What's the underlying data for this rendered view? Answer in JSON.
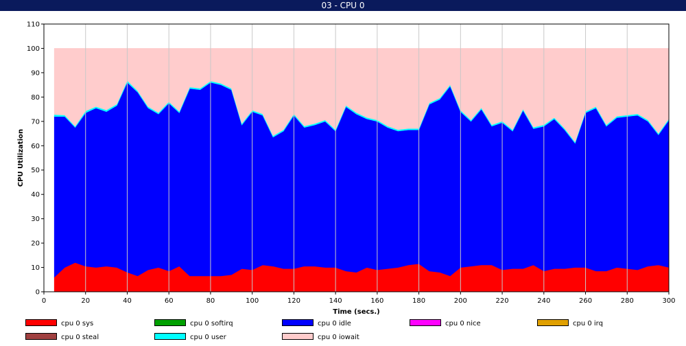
{
  "window": {
    "title": "03 - CPU 0"
  },
  "chart_data": {
    "type": "area",
    "stacked": true,
    "xlabel": "Time (secs.)",
    "ylabel": "CPU Utilization",
    "xlim": [
      0,
      300
    ],
    "ylim": [
      0,
      110
    ],
    "x_ticks": [
      0,
      20,
      40,
      60,
      80,
      100,
      120,
      140,
      160,
      180,
      200,
      220,
      240,
      260,
      280,
      300
    ],
    "y_ticks": [
      0,
      10,
      20,
      30,
      40,
      50,
      60,
      70,
      80,
      90,
      100,
      110
    ],
    "grid": "vertical",
    "legend_position": "bottom",
    "x": [
      5,
      10,
      15,
      20,
      25,
      30,
      35,
      40,
      45,
      50,
      55,
      60,
      65,
      70,
      75,
      80,
      85,
      90,
      95,
      100,
      105,
      110,
      115,
      120,
      125,
      130,
      135,
      140,
      145,
      150,
      155,
      160,
      165,
      170,
      175,
      180,
      185,
      190,
      195,
      200,
      205,
      210,
      215,
      220,
      225,
      230,
      235,
      240,
      245,
      250,
      255,
      260,
      265,
      270,
      275,
      280,
      285,
      290,
      295,
      300
    ],
    "series": [
      {
        "name": "cpu 0 sys",
        "color": "#ff0000",
        "values": [
          6,
          10,
          12,
          10.5,
          10,
          10.5,
          10,
          8,
          6.5,
          9,
          10,
          8.5,
          10.5,
          6.5,
          6.5,
          6.5,
          6.5,
          7,
          9.5,
          9,
          11,
          10.5,
          9.5,
          9.5,
          10.5,
          10.5,
          10,
          10,
          8.5,
          8,
          10,
          9,
          9.5,
          10,
          11,
          11.5,
          8.5,
          8,
          6.5,
          10,
          10.5,
          11,
          11,
          9,
          9.5,
          9.5,
          11,
          8.5,
          9.5,
          9.5,
          10,
          10,
          8.5,
          8.5,
          10,
          9.5,
          9,
          10.5,
          11,
          10
        ]
      },
      {
        "name": "cpu 0 softirq",
        "color": "#00a000",
        "values": [
          0,
          0,
          0,
          0,
          0,
          0,
          0,
          0,
          0,
          0,
          0,
          0,
          0,
          0,
          0,
          0,
          0,
          0,
          0,
          0,
          0,
          0,
          0,
          0,
          0,
          0,
          0,
          0,
          0,
          0,
          0,
          0,
          0,
          0,
          0,
          0,
          0,
          0,
          0,
          0,
          0,
          0,
          0,
          0,
          0,
          0,
          0,
          0,
          0,
          0,
          0,
          0,
          0,
          0,
          0,
          0,
          0,
          0,
          0,
          0
        ]
      },
      {
        "name": "cpu 0 idle",
        "color": "#0000ff",
        "values": [
          66,
          62,
          55.5,
          63,
          65.5,
          63.5,
          66.5,
          78,
          75.5,
          66.5,
          63,
          69,
          63,
          77,
          76.5,
          79.5,
          78.5,
          76,
          59,
          65,
          61.5,
          53,
          56.5,
          63,
          57,
          58,
          60,
          56,
          67.5,
          65,
          61,
          61,
          58,
          56,
          55.5,
          55,
          68.5,
          71,
          78,
          64,
          59.5,
          64,
          57,
          60.5,
          56.5,
          65,
          56,
          59.5,
          61.5,
          57,
          51,
          63.5,
          67,
          59.5,
          61.5,
          62.5,
          63.5,
          59.5,
          53.5,
          60.5
        ]
      },
      {
        "name": "cpu 0 nice",
        "color": "#ff00ff",
        "values": [
          0,
          0,
          0,
          0,
          0,
          0,
          0,
          0,
          0,
          0,
          0,
          0,
          0,
          0,
          0,
          0,
          0,
          0,
          0,
          0,
          0,
          0,
          0,
          0,
          0,
          0,
          0,
          0,
          0,
          0,
          0,
          0,
          0,
          0,
          0,
          0,
          0,
          0,
          0,
          0,
          0,
          0,
          0,
          0,
          0,
          0,
          0,
          0,
          0,
          0,
          0,
          0,
          0,
          0,
          0,
          0,
          0,
          0,
          0,
          0
        ]
      },
      {
        "name": "cpu 0 irq",
        "color": "#e0a000",
        "values": [
          0,
          0,
          0,
          0,
          0,
          0,
          0,
          0,
          0,
          0,
          0,
          0,
          0,
          0,
          0,
          0,
          0,
          0,
          0,
          0,
          0,
          0,
          0,
          0,
          0,
          0,
          0,
          0,
          0,
          0,
          0,
          0,
          0,
          0,
          0,
          0,
          0,
          0,
          0,
          0,
          0,
          0,
          0,
          0,
          0,
          0,
          0,
          0,
          0,
          0,
          0,
          0,
          0,
          0,
          0,
          0,
          0,
          0,
          0,
          0
        ]
      },
      {
        "name": "cpu 0 steal",
        "color": "#a04040",
        "values": [
          0,
          0,
          0,
          0,
          0,
          0,
          0,
          0,
          0,
          0,
          0,
          0,
          0,
          0,
          0,
          0,
          0,
          0,
          0,
          0,
          0,
          0,
          0,
          0,
          0,
          0,
          0,
          0,
          0,
          0,
          0,
          0,
          0,
          0,
          0,
          0,
          0,
          0,
          0,
          0,
          0,
          0,
          0,
          0,
          0,
          0,
          0,
          0,
          0,
          0,
          0,
          0,
          0,
          0,
          0,
          0,
          0,
          0,
          0,
          0
        ]
      },
      {
        "name": "cpu 0 user",
        "color": "#00ffff",
        "values": [
          0.8,
          0.6,
          0.5,
          0.8,
          0.6,
          0.7,
          0.6,
          0.8,
          0.6,
          0.6,
          0.6,
          0.6,
          0.6,
          0.6,
          0.6,
          0.6,
          0.6,
          0.6,
          0.6,
          0.6,
          0.6,
          0.6,
          0.6,
          0.6,
          0.6,
          0.6,
          0.6,
          0.6,
          0.6,
          0.6,
          0.6,
          0.6,
          0.6,
          0.6,
          0.6,
          0.6,
          0.6,
          0.6,
          0.6,
          0.6,
          0.6,
          0.6,
          0.6,
          0.6,
          0.6,
          0.6,
          0.6,
          0.6,
          0.6,
          0.6,
          0.6,
          0.6,
          0.6,
          0.6,
          0.6,
          0.6,
          0.6,
          0.6,
          0.6,
          0.6
        ]
      },
      {
        "name": "cpu 0 iowait",
        "color": "#ffcccc",
        "values": [
          27.2,
          27.4,
          32,
          25.7,
          23.9,
          25.3,
          22.9,
          13.2,
          17.4,
          23.9,
          26.4,
          21.9,
          25.9,
          15.9,
          16.4,
          13.4,
          14.4,
          16.4,
          30.9,
          25.4,
          26.9,
          35.9,
          33.4,
          26.9,
          31.9,
          30.9,
          29.4,
          33.4,
          23.4,
          26.4,
          28.4,
          29.4,
          31.9,
          33.4,
          32.9,
          32.9,
          22.4,
          20.4,
          14.9,
          25.4,
          29.4,
          24.4,
          31.4,
          29.9,
          33.4,
          24.9,
          32.4,
          31.4,
          28.4,
          32.9,
          38.4,
          25.9,
          23.9,
          31.4,
          27.9,
          27.4,
          26.9,
          29.4,
          34.9,
          28.9
        ]
      }
    ]
  }
}
